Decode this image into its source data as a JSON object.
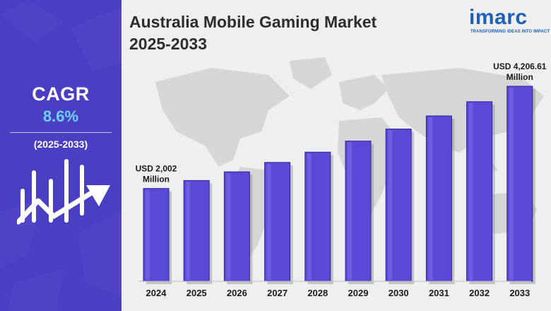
{
  "title_line1": "Australia Mobile Gaming Market",
  "title_line2": "2025-2033",
  "logo": {
    "name": "imarc",
    "tagline": "TRANSFORMING IDEAS INTO IMPACT",
    "color": "#1f5fb8"
  },
  "cagr": {
    "label": "CAGR",
    "value": "8.6%",
    "period": "(2025-2033)"
  },
  "colors": {
    "panel": "#4a3fc2",
    "bar": "#5a49d6",
    "bar_edge": "#2f2690",
    "accent": "#6fd3ff"
  },
  "chart_data": {
    "type": "bar",
    "categories": [
      "2024",
      "2025",
      "2026",
      "2027",
      "2028",
      "2029",
      "2030",
      "2031",
      "2032",
      "2033"
    ],
    "values": [
      2002,
      2174,
      2361,
      2564,
      2785,
      3024,
      3284,
      3567,
      3873,
      4206.61
    ],
    "annotations": [
      {
        "category": "2024",
        "line1": "USD 2,002",
        "line2": "Million"
      },
      {
        "category": "2033",
        "line1": "USD 4,206.61",
        "line2": "Million"
      }
    ],
    "title": "Australia Mobile Gaming Market 2025-2033",
    "xlabel": "",
    "ylabel": "",
    "grid": false,
    "legend": "none"
  }
}
